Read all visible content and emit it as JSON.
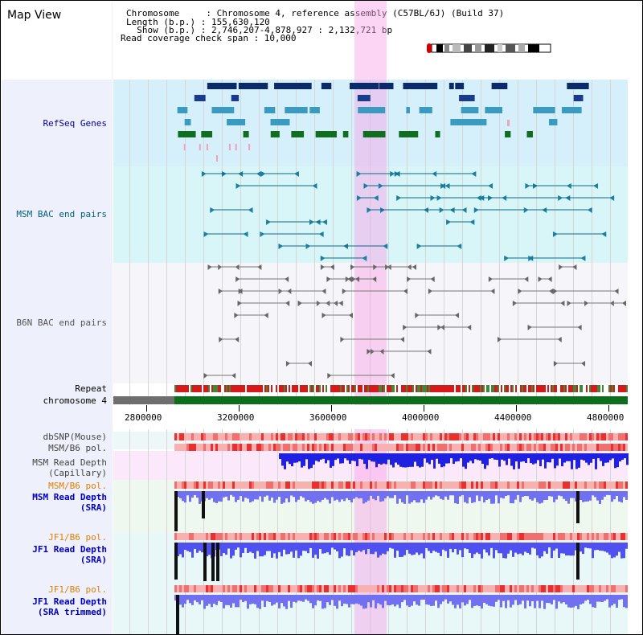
{
  "window": {
    "title": "Map View"
  },
  "info": {
    "chromosome_line": "Chromosome     : Chromosome 4, reference assembly (C57BL/6J) (Build 37)",
    "length_line": "Length (b.p.) : 155,630,120",
    "show_line": "  Show (b.p.) : 2,746,207-4,878,927 : 2,132,721 bp",
    "coverage_line": "Read coverage check span : 10,000"
  },
  "tracks": {
    "refseq": "RefSeq Genes",
    "msm_bac": "MSM BAC end pairs",
    "b6n_bac": "B6N BAC end pairs",
    "repeat": "Repeat",
    "chromosome": "chromosome 4",
    "dbsnp": "dbSNP(Mouse)",
    "msm_b6_pol_1": "MSM/B6 pol.",
    "msm_read_depth_cap": "MSM Read Depth\n(Capillary)",
    "msm_b6_pol_2": "MSM/B6 pol.",
    "msm_read_depth_sra": "MSM Read Depth\n(SRA)",
    "jf1_b6_pol_1": "JF1/B6 pol.",
    "jf1_read_depth_sra": "JF1 Read Depth\n(SRA)",
    "jf1_b6_pol_2": "JF1/B6 pol.",
    "jf1_read_depth_trim": "JF1 Read Depth\n(SRA trimmed)"
  },
  "axis": {
    "ticks": [
      "2800000",
      "3200000",
      "3600000",
      "4000000",
      "4400000",
      "4800000"
    ]
  },
  "colors": {
    "refseq_label": "#0000a0",
    "msm_label": "#006080",
    "b6n_label": "#555555",
    "pol_label": "#e08000",
    "read_depth_label": "#0000c0",
    "highlight": "#f8a0e6"
  }
}
